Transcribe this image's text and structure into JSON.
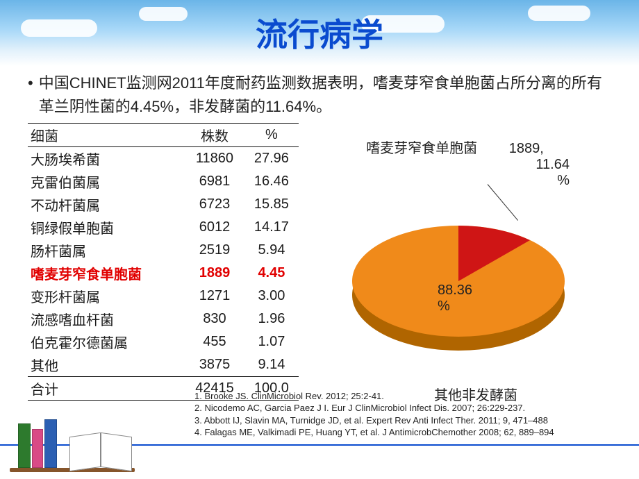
{
  "title": "流行病学",
  "bullet_text": "中国CHINET监测网2011年度耐药监测数据表明，嗜麦芽窄食单胞菌占所分离的所有革兰阴性菌的4.45%，非发酵菌的11.64%。",
  "table": {
    "headers": [
      "细菌",
      "株数",
      "%"
    ],
    "rows": [
      {
        "name": "大肠埃希菌",
        "count": "11860",
        "pct": "27.96",
        "highlight": false
      },
      {
        "name": "克雷伯菌属",
        "count": "6981",
        "pct": "16.46",
        "highlight": false
      },
      {
        "name": "不动杆菌属",
        "count": "6723",
        "pct": "15.85",
        "highlight": false
      },
      {
        "name": "铜绿假单胞菌",
        "count": "6012",
        "pct": "14.17",
        "highlight": false
      },
      {
        "name": "肠杆菌属",
        "count": "2519",
        "pct": "5.94",
        "highlight": false
      },
      {
        "name": "嗜麦芽窄食单胞菌",
        "count": "1889",
        "pct": "4.45",
        "highlight": true
      },
      {
        "name": "变形杆菌属",
        "count": "1271",
        "pct": "3.00",
        "highlight": false
      },
      {
        "name": "流感嗜血杆菌",
        "count": "830",
        "pct": "1.96",
        "highlight": false
      },
      {
        "name": "伯克霍尔德菌属",
        "count": "455",
        "pct": "1.07",
        "highlight": false
      },
      {
        "name": "其他",
        "count": "3875",
        "pct": "9.14",
        "highlight": false
      }
    ],
    "total": {
      "name": "合计",
      "count": "42415",
      "pct": "100.0"
    }
  },
  "pie": {
    "type": "pie-3d",
    "slices": [
      {
        "label": "嗜麦芽窄食单胞菌",
        "count": "1889,",
        "pct_line": "11.64",
        "pct_suffix": "%",
        "value": 11.64,
        "color": "#cf1515"
      },
      {
        "label": "其他非发酵菌",
        "pct_text": "88.36\n%",
        "value": 88.36,
        "color": "#f08a1a"
      }
    ],
    "edge_color": "#b06500",
    "edge_red": "#8e0f0f",
    "background": "#ffffff",
    "label_fontsize": 20,
    "label_color": "#222222"
  },
  "references": [
    "1. Brooke JS. ClinMicrobiol Rev. 2012; 25:2-41.",
    "2. Nicodemo AC, Garcia Paez J I. Eur J ClinMicrobiol Infect Dis. 2007; 26:229-237.",
    "3. Abbott IJ, Slavin MA, Turnidge JD, et al. Expert Rev Anti Infect Ther. 2011; 9, 471–488",
    "4. Falagas ME, Valkimadi PE, Huang YT, et al. J AntimicrobChemother 2008; 62, 889–894"
  ],
  "colors": {
    "title": "#0a4bcf",
    "text": "#222222",
    "highlight": "#e10000",
    "rule": "#111111"
  }
}
